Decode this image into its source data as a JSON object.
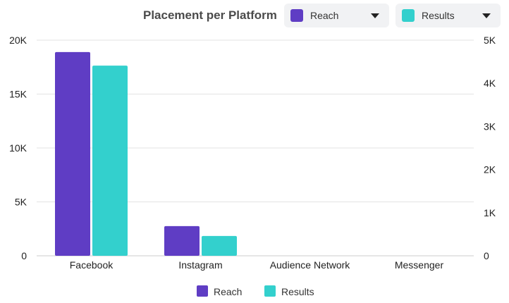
{
  "header": {
    "title": "Placement per Platform",
    "dropdowns": [
      {
        "label": "Reach",
        "color": "#5f3dc4",
        "icon": "chevron-down-icon"
      },
      {
        "label": "Results",
        "color": "#33d0cd",
        "icon": "chevron-down-icon"
      }
    ]
  },
  "chart_data": {
    "type": "bar",
    "title": "Placement per Platform",
    "categories": [
      "Facebook",
      "Instagram",
      "Audience Network",
      "Messenger"
    ],
    "series": [
      {
        "name": "Reach",
        "color": "#5f3dc4",
        "axis": "left",
        "values": [
          18900,
          2750,
          0,
          0
        ]
      },
      {
        "name": "Results",
        "color": "#33d0cd",
        "axis": "right",
        "values": [
          4410,
          460,
          0,
          0
        ]
      }
    ],
    "y_left": {
      "min": 0,
      "max": 20000,
      "ticks": [
        0,
        5000,
        10000,
        15000,
        20000
      ],
      "tick_labels": [
        "0",
        "5K",
        "10K",
        "15K",
        "20K"
      ]
    },
    "y_right": {
      "min": 0,
      "max": 5000,
      "ticks": [
        0,
        1000,
        2000,
        3000,
        4000,
        5000
      ],
      "tick_labels": [
        "0",
        "1K",
        "2K",
        "3K",
        "4K",
        "5K"
      ]
    },
    "grid": true,
    "legend": "bottom-center"
  },
  "legend": [
    {
      "label": "Reach",
      "color": "#5f3dc4"
    },
    {
      "label": "Results",
      "color": "#33d0cd"
    }
  ]
}
